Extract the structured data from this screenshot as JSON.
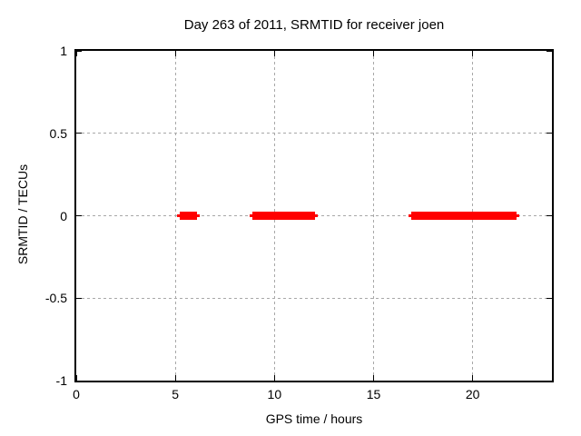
{
  "chart_data": {
    "type": "line",
    "title": "Day 263 of 2011, SRMTID for receiver joen",
    "xlabel": "GPS time / hours",
    "ylabel": "SRMTID / TECUs",
    "xlim": [
      0,
      24
    ],
    "ylim": [
      -1,
      1
    ],
    "xticks": [
      0,
      5,
      10,
      15,
      20
    ],
    "yticks": [
      -1,
      -0.5,
      0,
      0.5,
      1
    ],
    "grid": true,
    "legend_position": "none",
    "series": [
      {
        "name": "SRMTID",
        "color": "#ff0000",
        "style": "thick horizontal segments at constant value",
        "segments": [
          {
            "x_start": 5.2,
            "x_end": 6.1,
            "y": 0
          },
          {
            "x_start": 8.9,
            "x_end": 12.05,
            "y": 0
          },
          {
            "x_start": 16.9,
            "x_end": 22.2,
            "y": 0
          }
        ]
      }
    ]
  },
  "colors": {
    "background": "#ffffff",
    "plot_border": "#000000",
    "grid": "#a8a8a8",
    "text": "#000000",
    "series": "#ff0000"
  }
}
